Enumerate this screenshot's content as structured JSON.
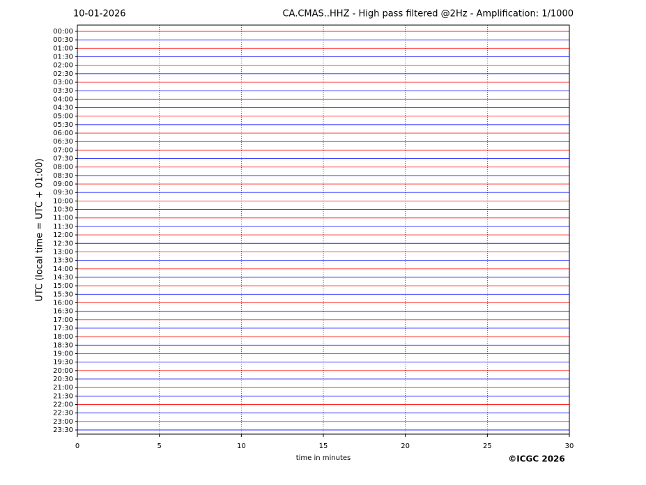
{
  "chart_data": {
    "type": "helicorder",
    "title_left": "10-01-2026",
    "title": "CA.CMAS..HHZ - High pass filtered @2Hz - Amplification: 1/1000",
    "y_label": "UTC (local time = UTC + 01:00)",
    "x_label": "time in minutes",
    "credit": "©ICGC 2026",
    "categories": [
      "00:00",
      "00:30",
      "01:00",
      "01:30",
      "02:00",
      "02:30",
      "03:00",
      "03:30",
      "04:00",
      "04:30",
      "05:00",
      "05:30",
      "06:00",
      "06:30",
      "07:00",
      "07:30",
      "08:00",
      "08:30",
      "09:00",
      "09:30",
      "10:00",
      "10:30",
      "11:00",
      "11:30",
      "12:00",
      "12:30",
      "13:00",
      "13:30",
      "14:00",
      "14:30",
      "15:00",
      "15:30",
      "16:00",
      "16:30",
      "17:00",
      "17:30",
      "18:00",
      "18:30",
      "19:00",
      "19:30",
      "20:00",
      "20:30",
      "21:00",
      "21:30",
      "22:00",
      "22:30",
      "23:00",
      "23:30"
    ],
    "trace_colors": [
      "#ff0000",
      "#0000ff"
    ],
    "xlim": [
      0,
      30
    ],
    "xticks": [
      0,
      5,
      10,
      15,
      20,
      25,
      30
    ],
    "grid": true
  }
}
